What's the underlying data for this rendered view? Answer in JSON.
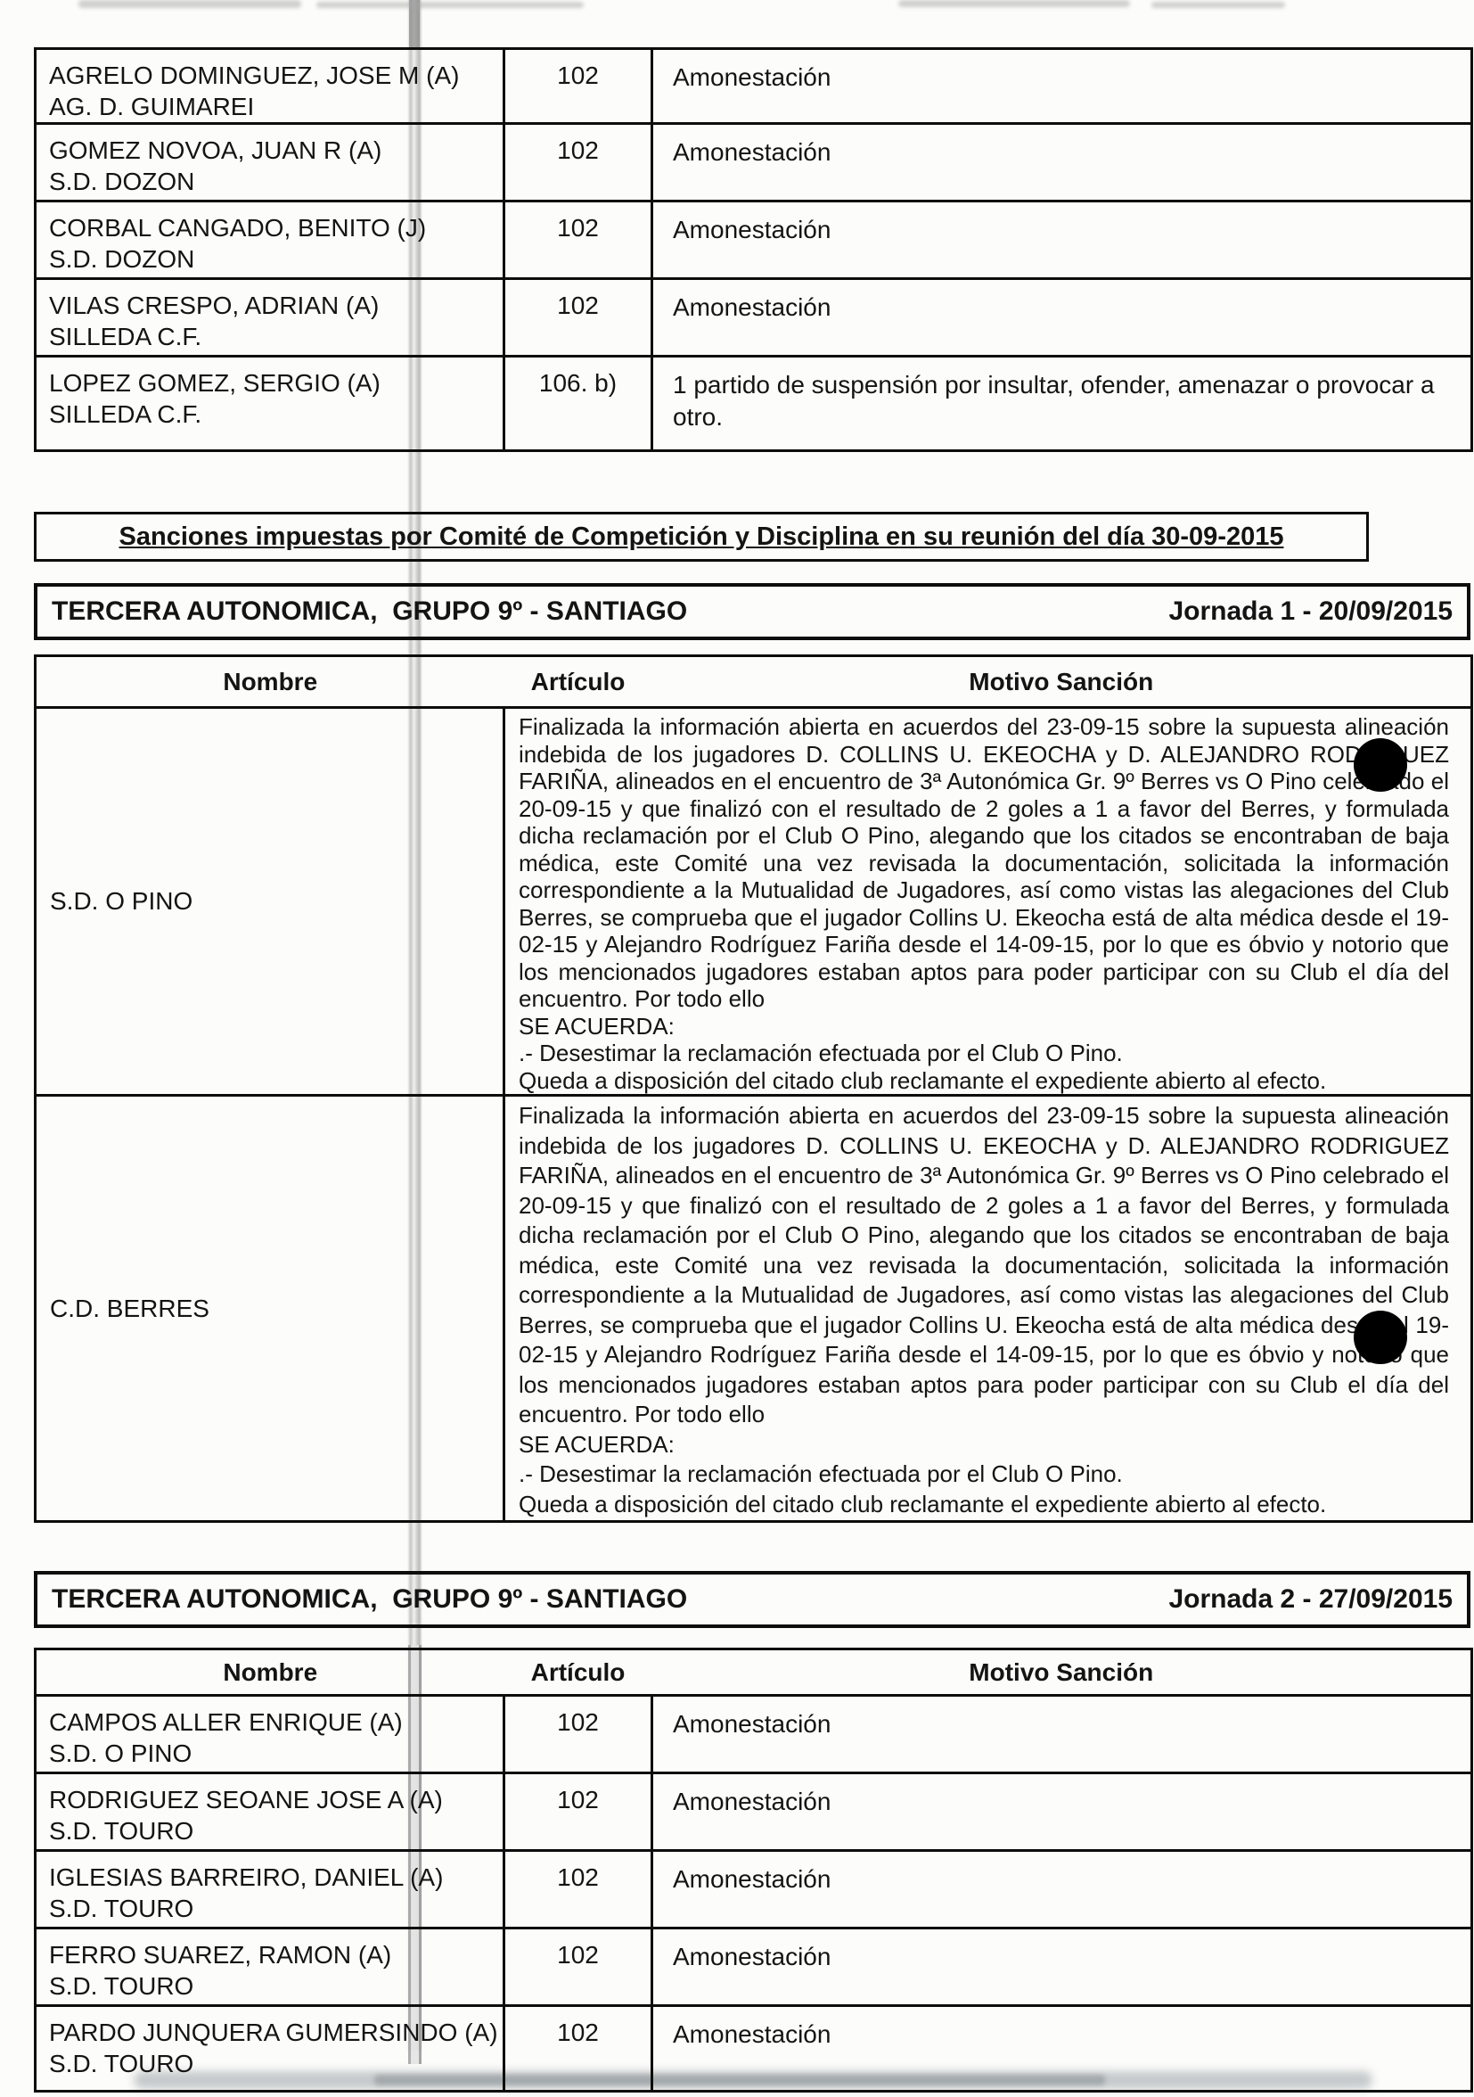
{
  "top_table": {
    "rows": [
      {
        "name": "AGRELO DOMINGUEZ, JOSE M (A)",
        "club": "AG. D. GUIMAREI",
        "articulo": "102",
        "motivo": "Amonestación"
      },
      {
        "name": "GOMEZ NOVOA, JUAN R (A)",
        "club": "S.D. DOZON",
        "articulo": "102",
        "motivo": "Amonestación"
      },
      {
        "name": "CORBAL CANGADO, BENITO (J)",
        "club": "S.D. DOZON",
        "articulo": "102",
        "motivo": "Amonestación"
      },
      {
        "name": "VILAS CRESPO, ADRIAN (A)",
        "club": "SILLEDA C.F.",
        "articulo": "102",
        "motivo": "Amonestación"
      },
      {
        "name": "LOPEZ GOMEZ, SERGIO (A)",
        "club": "SILLEDA C.F.",
        "articulo": "106. b)",
        "motivo": "1 partido de suspensión por insultar, ofender, amenazar o provocar a otro."
      }
    ]
  },
  "banner": {
    "title": "Sanciones impuestas por Comité de Competición y Disciplina en su reunión del día 30-09-2015"
  },
  "section1": {
    "competition": "TERCERA AUTONOMICA,  GRUPO 9º - SANTIAGO",
    "jornada": "Jornada 1 - 20/09/2015",
    "table": {
      "headers": {
        "nombre": "Nombre",
        "articulo": "Artículo",
        "motivo": "Motivo Sanción"
      },
      "rows": [
        {
          "name": "S.D. O PINO",
          "motivo": "Finalizada la información abierta en acuerdos del 23-09-15 sobre la supuesta alineación indebida de los jugadores D. COLLINS U. EKEOCHA y D. ALEJANDRO RODRIGUEZ FARIÑA, alineados en el encuentro de 3ª Autonómica Gr. 9º Berres vs O Pino celebrado el 20-09-15 y que finalizó con el resultado de 2 goles a 1 a favor del Berres, y formulada dicha reclamación por el Club O Pino, alegando que los citados se encontraban de baja médica, este Comité una vez revisada la documentación, solicitada la información correspondiente a la Mutualidad de Jugadores, así como vistas las alegaciones del Club Berres, se comprueba que el jugador Collins U. Ekeocha está de alta médica desde el 19-02-15 y Alejandro Rodríguez Fariña desde el 14-09-15, por lo que es óbvio y notorio que los mencionados jugadores estaban aptos para poder participar con su Club el día del encuentro. Por todo ello\nSE ACUERDA:\n.- Desestimar la reclamación efectuada por el Club O Pino.\nQueda a disposición del citado club reclamante el expediente abierto al efecto."
        },
        {
          "name": "C.D. BERRES",
          "motivo": "Finalizada la información abierta en acuerdos del 23-09-15 sobre la supuesta alineación indebida de los jugadores D. COLLINS U. EKEOCHA y D. ALEJANDRO RODRIGUEZ FARIÑA, alineados en el encuentro de 3ª Autonómica Gr. 9º Berres vs O Pino celebrado el 20-09-15 y que finalizó con el resultado de 2 goles a 1 a favor del Berres, y formulada dicha reclamación por el Club O Pino, alegando que los citados se encontraban de baja médica, este Comité una vez revisada la documentación, solicitada la información correspondiente a la Mutualidad de Jugadores, así como vistas las alegaciones del Club Berres, se comprueba que el jugador Collins U. Ekeocha está de alta médica desde el 19-02-15 y Alejandro Rodríguez Fariña desde el 14-09-15, por lo que es óbvio y notorio que los mencionados jugadores estaban aptos para poder participar con su Club el día del encuentro. Por todo ello\nSE ACUERDA:\n.- Desestimar la reclamación efectuada por el Club O Pino.\nQueda a disposición del citado club reclamante el expediente abierto al efecto."
        }
      ]
    }
  },
  "section2": {
    "competition": "TERCERA AUTONOMICA,  GRUPO 9º - SANTIAGO",
    "jornada": "Jornada 2 - 27/09/2015",
    "table": {
      "headers": {
        "nombre": "Nombre",
        "articulo": "Artículo",
        "motivo": "Motivo Sanción"
      },
      "rows": [
        {
          "name": "CAMPOS ALLER ENRIQUE (A)",
          "club": "S.D. O PINO",
          "articulo": "102",
          "motivo": "Amonestación"
        },
        {
          "name": "RODRIGUEZ SEOANE JOSE A (A)",
          "club": "S.D. TOURO",
          "articulo": "102",
          "motivo": "Amonestación"
        },
        {
          "name": "IGLESIAS BARREIRO, DANIEL (A)",
          "club": "S.D. TOURO",
          "articulo": "102",
          "motivo": "Amonestación"
        },
        {
          "name": "FERRO SUAREZ, RAMON (A)",
          "club": "S.D. TOURO",
          "articulo": "102",
          "motivo": "Amonestación"
        },
        {
          "name": "PARDO JUNQUERA GUMERSINDO (A)",
          "club": "S.D. TOURO",
          "articulo": "102",
          "motivo": "Amonestación"
        }
      ]
    }
  }
}
